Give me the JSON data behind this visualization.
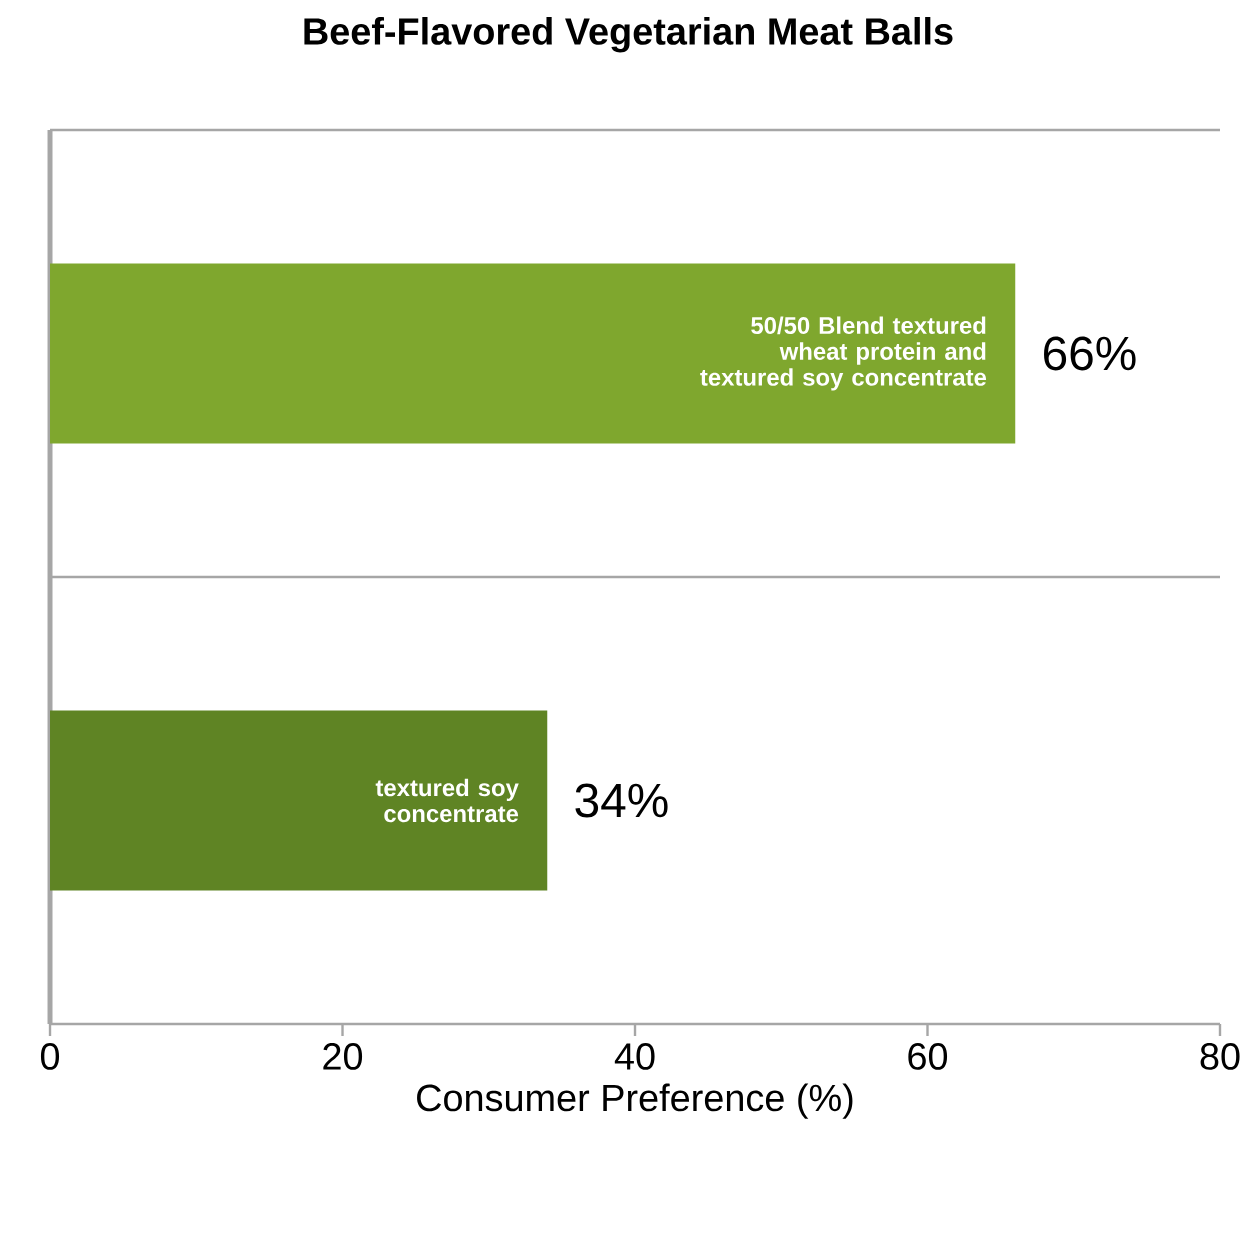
{
  "chart_data": {
    "type": "bar",
    "orientation": "horizontal",
    "title": "Beef-Flavored Vegetarian Meat Balls",
    "xlabel": "Consumer Preference (%)",
    "categories": [
      "50/50 Blend textured wheat protein and textured soy concentrate",
      "textured soy concentrate"
    ],
    "values": [
      66,
      34
    ],
    "colors": [
      "#7fa72e",
      "#5f8424"
    ],
    "value_labels": [
      "66%",
      "34%"
    ],
    "xlim": [
      0,
      80
    ],
    "xticks": [
      0,
      20,
      40,
      60,
      80
    ],
    "grid": "y"
  }
}
